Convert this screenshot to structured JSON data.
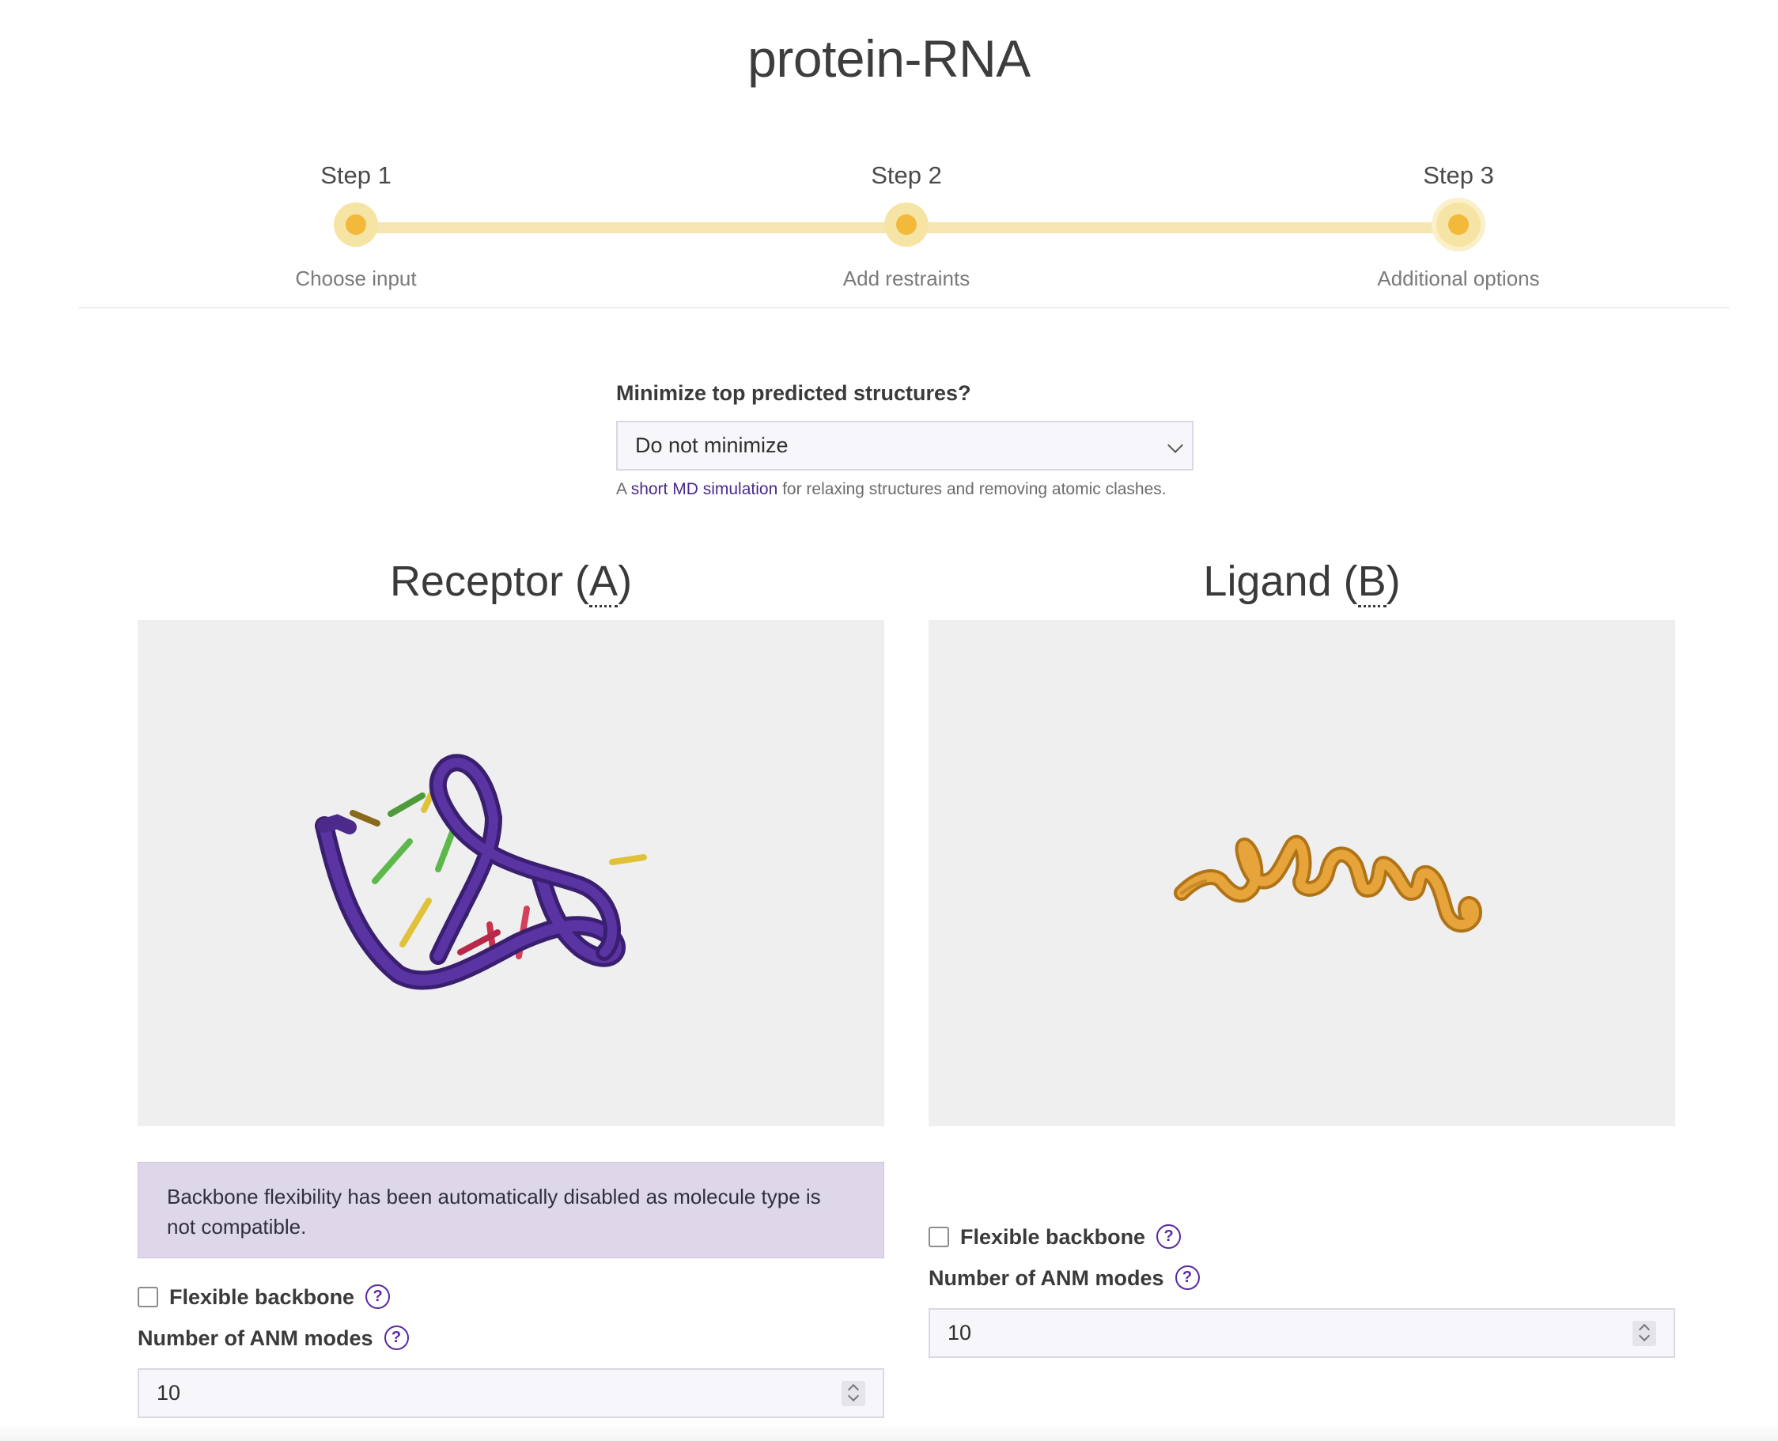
{
  "page": {
    "title": "protein-RNA"
  },
  "stepper": {
    "steps": [
      {
        "number": "Step 1",
        "label": "Choose input"
      },
      {
        "number": "Step 2",
        "label": "Add restraints"
      },
      {
        "number": "Step 3",
        "label": "Additional options"
      }
    ],
    "active_step": 3
  },
  "minimize": {
    "label": "Minimize top predicted structures?",
    "selected": "Do not minimize",
    "help_prefix": "A ",
    "help_link": "short MD simulation",
    "help_suffix": " for relaxing structures and removing atomic clashes."
  },
  "receptor": {
    "title_prefix": "Receptor (",
    "title_abbr": "A",
    "title_suffix": ")",
    "structure_color": "#4b2a8c",
    "notice": "Backbone flexibility has been automatically disabled as molecule type is not compatible.",
    "flexible_label": "Flexible backbone",
    "anm_label": "Number of ANM modes",
    "anm_value": "10"
  },
  "ligand": {
    "title_prefix": "Ligand (",
    "title_abbr": "B",
    "title_suffix": ")",
    "structure_color": "#e6a43a",
    "flexible_label": "Flexible backbone",
    "anm_label": "Number of ANM modes",
    "anm_value": "10"
  },
  "colors": {
    "accent": "#f2b93b",
    "track": "#f6e7b2",
    "link": "#4a2a8a",
    "help": "#5a2aa0",
    "notice_bg": "#ded6e9"
  }
}
